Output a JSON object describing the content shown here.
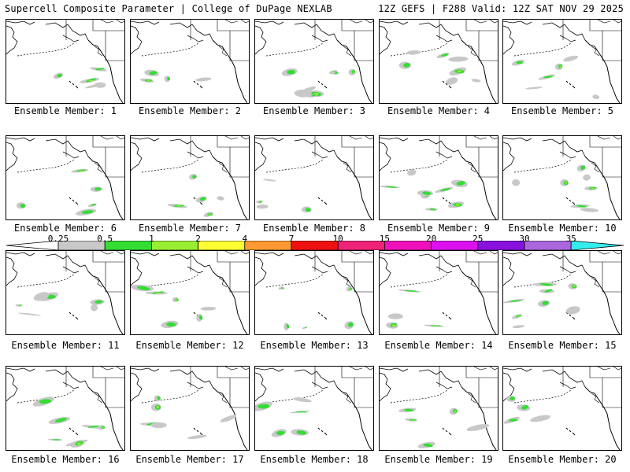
{
  "header": {
    "left": "Supercell Composite Parameter | College of DuPage NEXLAB",
    "right": "12Z GEFS | F288 Valid: 12Z SAT NOV 29 2025"
  },
  "members": [
    "Ensemble Member: 1",
    "Ensemble Member: 2",
    "Ensemble Member: 3",
    "Ensemble Member: 4",
    "Ensemble Member: 5",
    "Ensemble Member: 6",
    "Ensemble Member: 7",
    "Ensemble Member: 8",
    "Ensemble Member: 9",
    "Ensemble Member: 10",
    "Ensemble Member: 11",
    "Ensemble Member: 12",
    "Ensemble Member: 13",
    "Ensemble Member: 14",
    "Ensemble Member: 15",
    "Ensemble Member: 16",
    "Ensemble Member: 17",
    "Ensemble Member: 18",
    "Ensemble Member: 19",
    "Ensemble Member: 20"
  ],
  "colorbar": {
    "ticks": [
      "0.25",
      "0.5",
      "1",
      "2",
      "4",
      "7",
      "10",
      "15",
      "20",
      "25",
      "30",
      "35"
    ],
    "colors": [
      "#c8c8c8",
      "#33dd33",
      "#99ee33",
      "#ffff33",
      "#ff9933",
      "#ee1111",
      "#ee2277",
      "#ee11bb",
      "#dd11ee",
      "#8811dd",
      "#aa66dd",
      "#33eeee"
    ]
  }
}
